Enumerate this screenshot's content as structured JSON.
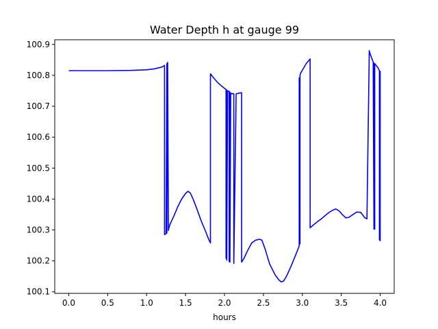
{
  "chart_data": {
    "type": "line",
    "title": "Water Depth h at gauge 99",
    "xlabel": "hours",
    "ylabel": "",
    "xlim": [
      -0.18,
      4.18
    ],
    "ylim": [
      100.095,
      100.915
    ],
    "xticks": [
      "0.0",
      "0.5",
      "1.0",
      "1.5",
      "2.0",
      "2.5",
      "3.0",
      "3.5",
      "4.0"
    ],
    "yticks": [
      "100.1",
      "100.2",
      "100.3",
      "100.4",
      "100.5",
      "100.6",
      "100.7",
      "100.8",
      "100.9"
    ],
    "grid": false,
    "series": [
      {
        "color": "#0000ff",
        "x": [
          0.0,
          0.5,
          0.8,
          1.0,
          1.1,
          1.2,
          1.23,
          1.23,
          1.25,
          1.26,
          1.26,
          1.27,
          1.28,
          1.28,
          1.3,
          1.35,
          1.4,
          1.45,
          1.5,
          1.53,
          1.56,
          1.6,
          1.65,
          1.7,
          1.75,
          1.8,
          1.82,
          1.82,
          1.85,
          1.9,
          1.95,
          2.0,
          2.02,
          2.02,
          2.03,
          2.03,
          2.04,
          2.06,
          2.06,
          2.07,
          2.07,
          2.08,
          2.12,
          2.12,
          2.15,
          2.18,
          2.22,
          2.22,
          2.25,
          2.3,
          2.35,
          2.4,
          2.45,
          2.48,
          2.52,
          2.58,
          2.65,
          2.7,
          2.73,
          2.76,
          2.8,
          2.85,
          2.9,
          2.96,
          2.96,
          2.96,
          2.97,
          2.97,
          2.97,
          2.98,
          3.02,
          3.05,
          3.1,
          3.1,
          3.15,
          3.2,
          3.25,
          3.3,
          3.35,
          3.4,
          3.43,
          3.47,
          3.52,
          3.56,
          3.6,
          3.65,
          3.7,
          3.75,
          3.8,
          3.83,
          3.86,
          3.86,
          3.88,
          3.91,
          3.92,
          3.92,
          3.93,
          3.93,
          3.97,
          3.99,
          3.99,
          4.0,
          4.0,
          4.0
        ],
        "y": [
          100.815,
          100.815,
          100.816,
          100.818,
          100.821,
          100.827,
          100.832,
          100.285,
          100.288,
          100.838,
          100.29,
          100.842,
          100.298,
          100.3,
          100.318,
          100.345,
          100.375,
          100.4,
          100.418,
          100.425,
          100.42,
          100.398,
          100.365,
          100.33,
          100.3,
          100.268,
          100.258,
          100.805,
          100.795,
          100.78,
          100.768,
          100.758,
          100.754,
          100.208,
          100.752,
          100.202,
          100.75,
          100.748,
          100.198,
          100.746,
          100.196,
          100.742,
          100.74,
          100.192,
          100.74,
          100.742,
          100.744,
          100.196,
          100.208,
          100.235,
          100.258,
          100.267,
          100.27,
          100.267,
          100.24,
          100.19,
          100.155,
          100.138,
          100.132,
          100.135,
          100.152,
          100.18,
          100.21,
          100.248,
          100.792,
          100.253,
          100.796,
          100.255,
          100.8,
          100.808,
          100.825,
          100.838,
          100.853,
          100.307,
          100.318,
          100.328,
          100.337,
          100.348,
          100.358,
          100.365,
          100.368,
          100.362,
          100.348,
          100.339,
          100.341,
          100.35,
          100.358,
          100.357,
          100.34,
          100.336,
          100.88,
          100.878,
          100.863,
          100.843,
          100.303,
          100.84,
          100.303,
          100.838,
          100.825,
          100.815,
          100.268,
          100.813,
          100.265,
          100.81
        ]
      }
    ]
  }
}
